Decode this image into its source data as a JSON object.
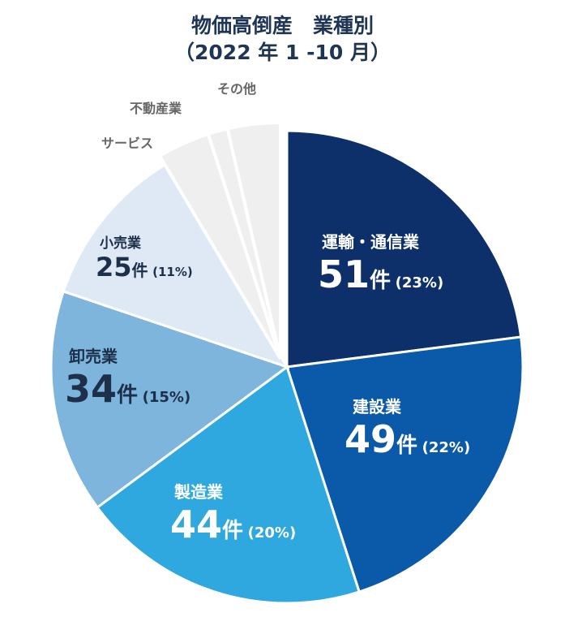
{
  "chart_data": {
    "type": "pie",
    "title": "物価高倒産　業種別",
    "subtitle": "（2022 年 1 -10 月）",
    "unit": "件",
    "slices": [
      {
        "label": "運輸・通信業",
        "value": 51,
        "pct": "23%",
        "color": "#0d306a"
      },
      {
        "label": "建設業",
        "value": 49,
        "pct": "22%",
        "color": "#0b5aa9"
      },
      {
        "label": "製造業",
        "value": 44,
        "pct": "20%",
        "color": "#2ea8df"
      },
      {
        "label": "卸売業",
        "value": 34,
        "pct": "15%",
        "color": "#7db5dd"
      },
      {
        "label": "小売業",
        "value": 25,
        "pct": "11%",
        "color": "#dfe9f5"
      },
      {
        "label": "サービス",
        "value": 8,
        "color": "#efefef"
      },
      {
        "label": "不動産業",
        "value": 3,
        "color": "#efefef"
      },
      {
        "label": "その他",
        "value": 8,
        "color": "#efefef"
      }
    ]
  }
}
